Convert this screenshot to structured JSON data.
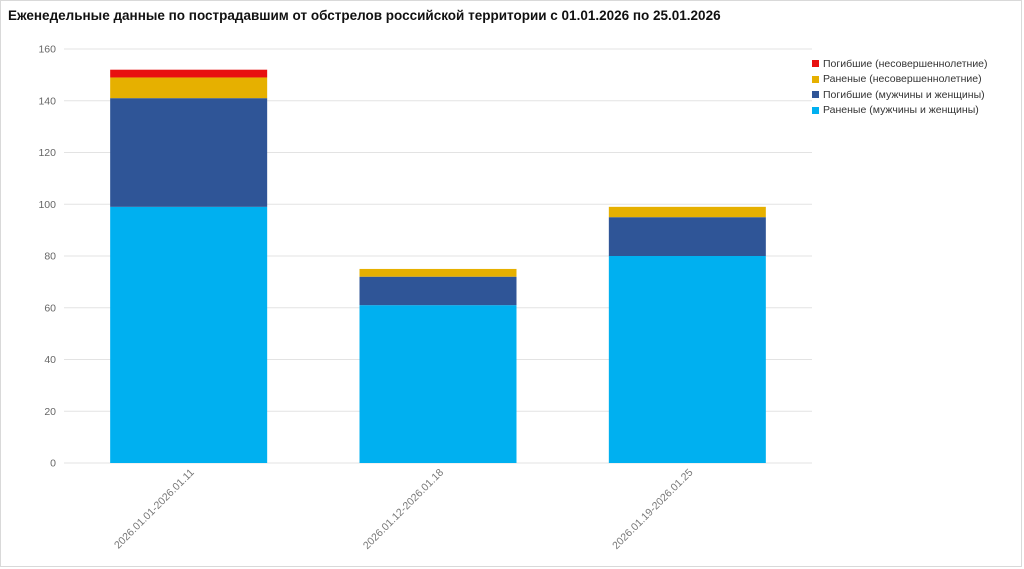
{
  "chart_data": {
    "type": "bar",
    "stacked": true,
    "title": "Еженедельные данные по пострадавшим от обстрелов российской территории с 01.01.2026 по 25.01.2026",
    "xlabel": "",
    "ylabel": "",
    "ylim": [
      0,
      160
    ],
    "yticks": [
      0,
      20,
      40,
      60,
      80,
      100,
      120,
      140,
      160
    ],
    "grid": true,
    "legend_position": "top-right",
    "categories": [
      "2026.01.01-2026.01.11",
      "2026.01.12-2026.01.18",
      "2026.01.19-2026.01.25"
    ],
    "series": [
      {
        "name": "Раненые (мужчины и женщины)",
        "color": "#00b0f0",
        "values": [
          99,
          61,
          80
        ]
      },
      {
        "name": "Погибшие (мужчины и женщины)",
        "color": "#2f5597",
        "values": [
          42,
          11,
          15
        ]
      },
      {
        "name": "Раненые (несовершеннолетние)",
        "color": "#e6b000",
        "values": [
          8,
          3,
          4
        ]
      },
      {
        "name": "Погибшие (несовершеннолетние)",
        "color": "#e81010",
        "values": [
          3,
          0,
          0
        ]
      }
    ],
    "legend_order": [
      "Погибшие (несовершеннолетние)",
      "Раненые (несовершеннолетние)",
      "Погибшие (мужчины и женщины)",
      "Раненые (мужчины и женщины)"
    ]
  }
}
